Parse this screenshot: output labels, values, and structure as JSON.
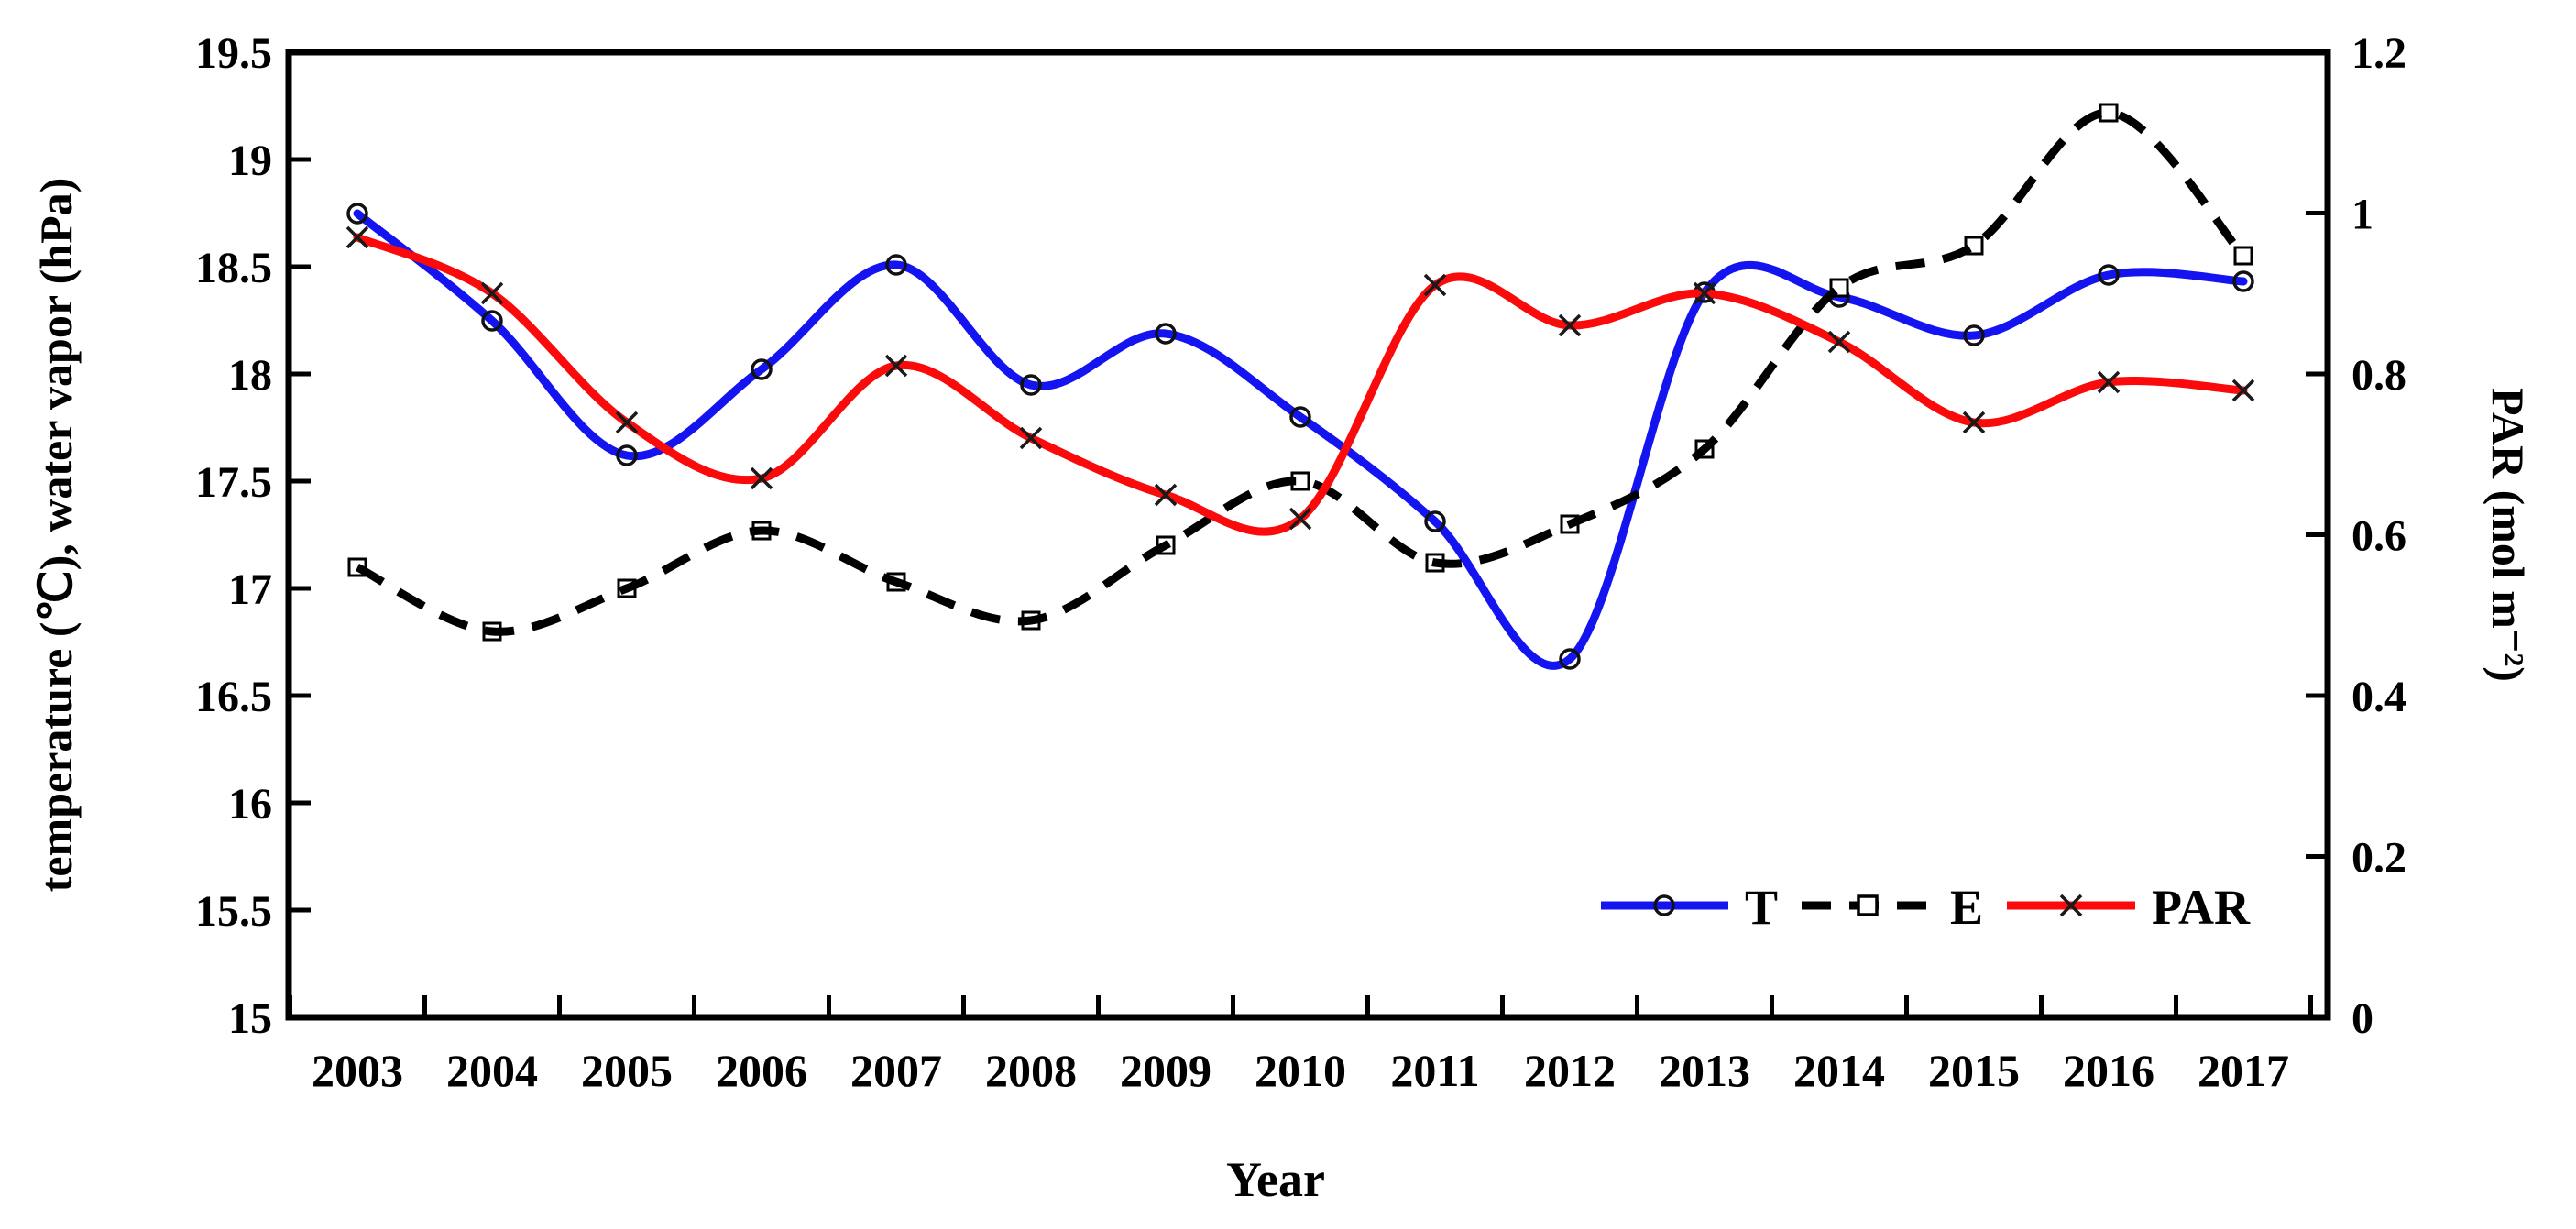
{
  "chart_data": {
    "type": "line",
    "title": "",
    "xlabel": "Year",
    "ylabel_left": "temperature (℃), water vapor (hPa)",
    "ylabel_right": "PAR (mol m⁻²)",
    "categories": [
      2003,
      2004,
      2005,
      2006,
      2007,
      2008,
      2009,
      2010,
      2011,
      2012,
      2013,
      2014,
      2015,
      2016,
      2017
    ],
    "series": [
      {
        "name": "T",
        "axis": "left",
        "color": "#1414f0",
        "marker": "circle",
        "dashed": false,
        "values": [
          18.75,
          18.25,
          17.62,
          18.02,
          18.51,
          17.95,
          18.19,
          17.8,
          17.31,
          16.67,
          18.38,
          18.36,
          18.18,
          18.46,
          18.43
        ]
      },
      {
        "name": "E",
        "axis": "left",
        "color": "#000000",
        "marker": "square",
        "dashed": true,
        "values": [
          17.1,
          16.8,
          17.0,
          17.27,
          17.03,
          16.85,
          17.2,
          17.5,
          17.12,
          17.3,
          17.65,
          18.4,
          18.6,
          19.22,
          18.55
        ]
      },
      {
        "name": "PAR",
        "axis": "right",
        "color": "#fa0a0a",
        "marker": "x",
        "dashed": false,
        "values": [
          0.97,
          0.9,
          0.74,
          0.67,
          0.81,
          0.72,
          0.65,
          0.62,
          0.91,
          0.86,
          0.9,
          0.84,
          0.74,
          0.79,
          0.78
        ]
      }
    ],
    "axes": {
      "left": {
        "min": 15,
        "max": 19.5,
        "tick_labels": [
          "15",
          "15.5",
          "16",
          "16.5",
          "17",
          "17.5",
          "18",
          "18.5",
          "19",
          "19.5"
        ]
      },
      "right": {
        "min": 0,
        "max": 1.2,
        "tick_labels": [
          "0",
          "0.2",
          "0.4",
          "0.6",
          "0.8",
          "1",
          "1.2"
        ]
      },
      "x": {
        "tick_labels": [
          "2003",
          "2004",
          "2005",
          "2006",
          "2007",
          "2008",
          "2009",
          "2010",
          "2011",
          "2012",
          "2013",
          "2014",
          "2015",
          "2016",
          "2017"
        ]
      }
    },
    "grid": false,
    "legend": {
      "position": "inside-bottom-right",
      "items": [
        {
          "label": "T"
        },
        {
          "label": "E"
        },
        {
          "label": "PAR"
        }
      ]
    }
  }
}
